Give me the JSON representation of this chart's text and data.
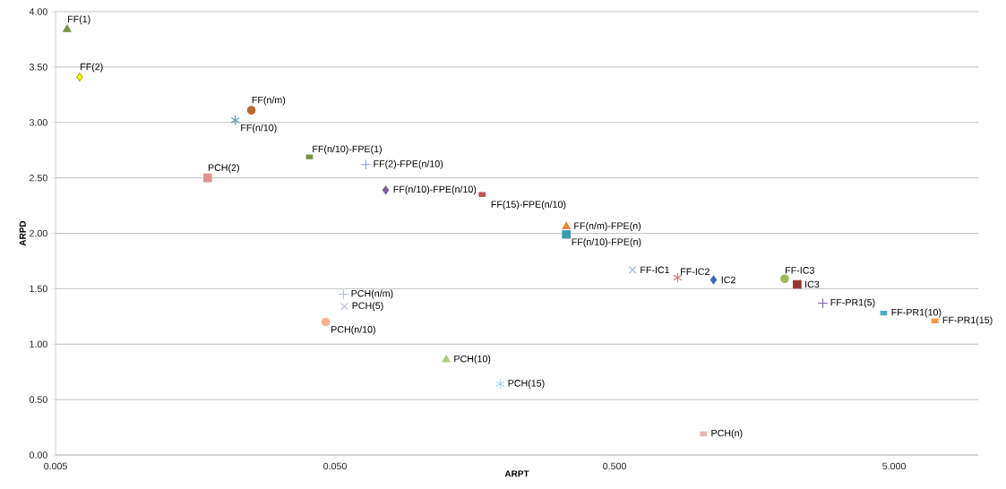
{
  "chart_data": {
    "type": "scatter",
    "xlabel": "ARPT",
    "ylabel": "ARPD",
    "log": "x",
    "grid": "y",
    "xlim": [
      0.005,
      10
    ],
    "xticks": [
      {
        "value": 0.005,
        "label": "0.005"
      },
      {
        "value": 0.05,
        "label": "0.050"
      },
      {
        "value": 0.5,
        "label": "0.500"
      },
      {
        "value": 5,
        "label": "5.000"
      }
    ],
    "ylim": [
      0,
      4
    ],
    "yticks": [
      {
        "value": 0,
        "label": "0.00"
      },
      {
        "value": 0.5,
        "label": "0.50"
      },
      {
        "value": 1,
        "label": "1.00"
      },
      {
        "value": 1.5,
        "label": "1.50"
      },
      {
        "value": 2,
        "label": "2.00"
      },
      {
        "value": 2.5,
        "label": "2.50"
      },
      {
        "value": 3,
        "label": "3.00"
      },
      {
        "value": 3.5,
        "label": "3.50"
      },
      {
        "value": 4,
        "label": "4.00"
      }
    ],
    "series": [
      {
        "name": "FF(1)",
        "color": "#77933c",
        "marker": "triangle",
        "x": [
          0.0055
        ],
        "values": [
          3.84
        ]
      },
      {
        "name": "FF(2)",
        "color": "#ffff00",
        "marker": "diamond",
        "x": [
          0.0061
        ],
        "values": [
          3.41
        ]
      },
      {
        "name": "FF(n/m)",
        "color": "#b9682a",
        "marker": "circle",
        "x": [
          0.0251
        ],
        "values": [
          3.11
        ]
      },
      {
        "name": "FF(n/10)",
        "color": "#4f8fa8",
        "marker": "cross",
        "x": [
          0.022
        ],
        "values": [
          3.02
        ]
      },
      {
        "name": "PCH(2)",
        "color": "#d99594",
        "marker": "square",
        "x": [
          0.0175
        ],
        "values": [
          2.5
        ]
      },
      {
        "name": "FF(n/10)-FPE(1)",
        "color": "#77933c",
        "marker": "square",
        "x": [
          0.0405
        ],
        "values": [
          2.69
        ]
      },
      {
        "name": "FF(2)-FPE(n/10)",
        "color": "#7b9fd4",
        "marker": "cross",
        "x": [
          0.0644
        ],
        "values": [
          2.62
        ]
      },
      {
        "name": "FF(n/10)-FPE(n/10)",
        "color": "#7a5c9a",
        "marker": "diamond",
        "x": [
          0.0759
        ],
        "values": [
          2.39
        ]
      },
      {
        "name": "FF(15)-FPE(n/10)",
        "color": "#c0504d",
        "marker": "square",
        "x": [
          0.168
        ],
        "values": [
          2.35
        ]
      },
      {
        "name": "FF(n/m)-FPE(n)",
        "color": "#e0893a",
        "marker": "triangle",
        "x": [
          0.336
        ],
        "values": [
          2.06
        ]
      },
      {
        "name": "FF(n/10)-FPE(n)",
        "color": "#3b9ab4",
        "marker": "square",
        "x": [
          0.336
        ],
        "values": [
          1.99
        ]
      },
      {
        "name": "FF-IC1",
        "color": "#95b3d7",
        "marker": "cross",
        "x": [
          0.58
        ],
        "values": [
          1.67
        ]
      },
      {
        "name": "FF-IC2",
        "color": "#d9707a",
        "marker": "cross",
        "x": [
          0.84
        ],
        "values": [
          1.6
        ]
      },
      {
        "name": "IC2",
        "color": "#3d6aa3",
        "marker": "diamond",
        "x": [
          1.13
        ],
        "values": [
          1.58
        ]
      },
      {
        "name": "FF-IC3",
        "color": "#9bbb59",
        "marker": "circle",
        "x": [
          2.03
        ],
        "values": [
          1.59
        ]
      },
      {
        "name": "IC3",
        "color": "#953735",
        "marker": "square",
        "x": [
          2.25
        ],
        "values": [
          1.54
        ]
      },
      {
        "name": "FF-PR1(5)",
        "color": "#8064a2",
        "marker": "cross",
        "x": [
          2.78
        ],
        "values": [
          1.37
        ]
      },
      {
        "name": "FF-PR1(10)",
        "color": "#4bacc6",
        "marker": "square",
        "x": [
          4.59
        ],
        "values": [
          1.28
        ]
      },
      {
        "name": "FF-PR1(15)",
        "color": "#f79646",
        "marker": "square",
        "x": [
          7.0
        ],
        "values": [
          1.21
        ]
      },
      {
        "name": "PCH(n/m)",
        "color": "#b4c3e0",
        "marker": "cross",
        "x": [
          0.0536
        ],
        "values": [
          1.45
        ]
      },
      {
        "name": "PCH(5)",
        "color": "#c0b8d8",
        "marker": "cross",
        "x": [
          0.054
        ],
        "values": [
          1.34
        ]
      },
      {
        "name": "PCH(n/10)",
        "color": "#fab38f",
        "marker": "circle",
        "x": [
          0.0463
        ],
        "values": [
          1.2
        ]
      },
      {
        "name": "PCH(10)",
        "color": "#aec98a",
        "marker": "triangle",
        "x": [
          0.125
        ],
        "values": [
          0.86
        ]
      },
      {
        "name": "PCH(15)",
        "color": "#a6d4e0",
        "marker": "cross",
        "x": [
          0.195
        ],
        "values": [
          0.64
        ]
      },
      {
        "name": "PCH(n)",
        "color": "#e6b8b7",
        "marker": "square",
        "x": [
          1.04
        ],
        "values": [
          0.19
        ]
      }
    ]
  }
}
